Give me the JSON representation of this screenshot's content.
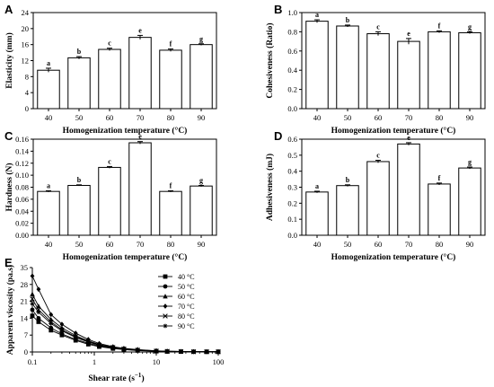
{
  "chart_data": [
    {
      "id": "A",
      "type": "bar",
      "panel_label": "A",
      "categories": [
        "40",
        "50",
        "60",
        "70",
        "80",
        "90"
      ],
      "values": [
        9.6,
        12.7,
        14.8,
        17.8,
        14.6,
        16.0
      ],
      "errors": [
        0.5,
        0.3,
        0.3,
        0.5,
        0.3,
        0.2
      ],
      "sig_letters": [
        "a",
        "b",
        "c",
        "e",
        "f",
        "g"
      ],
      "xlabel": "Homogenization temperature (°C)",
      "ylabel": "Elasticity (mm)",
      "ylim": [
        0,
        24
      ],
      "yticks": [
        "0",
        "4",
        "8",
        "12",
        "16",
        "20",
        "24"
      ],
      "ytick_values": [
        0,
        4,
        8,
        12,
        16,
        20,
        24
      ]
    },
    {
      "id": "B",
      "type": "bar",
      "panel_label": "B",
      "categories": [
        "40",
        "50",
        "60",
        "70",
        "80",
        "90"
      ],
      "values": [
        0.91,
        0.86,
        0.78,
        0.7,
        0.8,
        0.79
      ],
      "errors": [
        0.015,
        0.01,
        0.02,
        0.03,
        0.01,
        0.01
      ],
      "sig_letters": [
        "a",
        "b",
        "c",
        "e",
        "f",
        "g"
      ],
      "xlabel": "Homogenization temperature (°C)",
      "ylabel": "Cohesiveness (Ratio)",
      "ylim": [
        0,
        1.0
      ],
      "yticks": [
        "0.0",
        "0.2",
        "0.4",
        "0.6",
        "0.8",
        "1.0"
      ],
      "ytick_values": [
        0,
        0.2,
        0.4,
        0.6,
        0.8,
        1.0
      ]
    },
    {
      "id": "C",
      "type": "bar",
      "panel_label": "C",
      "categories": [
        "40",
        "50",
        "60",
        "70",
        "80",
        "90"
      ],
      "values": [
        0.073,
        0.083,
        0.113,
        0.154,
        0.073,
        0.082
      ],
      "errors": [
        0.001,
        0.001,
        0.0015,
        0.002,
        0.001,
        0.001
      ],
      "sig_letters": [
        "a",
        "b",
        "c",
        "e",
        "f",
        "g"
      ],
      "xlabel": "Homogenization temperature (°C)",
      "ylabel": "Hardness (N)",
      "ylim": [
        0,
        0.16
      ],
      "yticks": [
        "0.00",
        "0.02",
        "0.04",
        "0.06",
        "0.08",
        "0.10",
        "0.12",
        "0.14",
        "0.16"
      ],
      "ytick_values": [
        0,
        0.02,
        0.04,
        0.06,
        0.08,
        0.1,
        0.12,
        0.14,
        0.16
      ]
    },
    {
      "id": "D",
      "type": "bar",
      "panel_label": "D",
      "categories": [
        "40",
        "50",
        "60",
        "70",
        "80",
        "90"
      ],
      "values": [
        0.27,
        0.31,
        0.46,
        0.57,
        0.32,
        0.42
      ],
      "errors": [
        0.005,
        0.005,
        0.008,
        0.008,
        0.006,
        0.006
      ],
      "sig_letters": [
        "a",
        "b",
        "c",
        "e",
        "f",
        "g"
      ],
      "xlabel": "Homogenization temperature (°C)",
      "ylabel": "Adhesiveness (mJ)",
      "ylim": [
        0,
        0.6
      ],
      "yticks": [
        "0.0",
        "0.1",
        "0.2",
        "0.3",
        "0.4",
        "0.5",
        "0.6"
      ],
      "ytick_values": [
        0,
        0.1,
        0.2,
        0.3,
        0.4,
        0.5,
        0.6
      ]
    },
    {
      "id": "E",
      "type": "line",
      "panel_label": "E",
      "xscale": "log",
      "xlabel": "Shear rate (s",
      "xlabel_sup": "−1",
      "xlabel_close": ")",
      "ylabel": "Apparent viscosity (pa.s)",
      "xlim": [
        0.1,
        100
      ],
      "ylim": [
        0,
        35
      ],
      "xticks": [
        "0.1",
        "1",
        "10",
        "100"
      ],
      "xtick_values": [
        0.1,
        1,
        10,
        100
      ],
      "yticks": [
        "0",
        "7",
        "14",
        "21",
        "28",
        "35"
      ],
      "ytick_values": [
        0,
        7,
        14,
        21,
        28,
        35
      ],
      "legend_position": "top-right",
      "x": [
        0.1,
        0.126,
        0.2,
        0.3,
        0.5,
        0.8,
        1.2,
        2,
        3,
        5,
        10,
        15,
        25,
        40,
        65,
        100
      ],
      "series": [
        {
          "name": "40 °C",
          "marker": "square",
          "values": [
            15,
            12.5,
            9.0,
            7.0,
            4.8,
            3.2,
            2.2,
            1.4,
            1.0,
            0.6,
            0.3,
            0.2,
            0.15,
            0.1,
            0.1,
            0.1
          ]
        },
        {
          "name": "50 °C",
          "marker": "circle",
          "values": [
            17.5,
            14.0,
            10.0,
            7.5,
            5.2,
            3.6,
            2.5,
            1.6,
            1.1,
            0.7,
            0.35,
            0.25,
            0.15,
            0.1,
            0.1,
            0.1
          ]
        },
        {
          "name": "60 °C",
          "marker": "triangle",
          "values": [
            24.0,
            19.0,
            13.5,
            10.0,
            6.8,
            4.6,
            3.1,
            2.0,
            1.4,
            0.9,
            0.45,
            0.3,
            0.2,
            0.15,
            0.1,
            0.1
          ]
        },
        {
          "name": "70 °C",
          "marker": "diamond",
          "values": [
            31.5,
            26.0,
            15.5,
            11.5,
            7.8,
            5.2,
            3.5,
            2.2,
            1.5,
            1.0,
            0.5,
            0.3,
            0.2,
            0.15,
            0.1,
            0.1
          ]
        },
        {
          "name": "80 °C",
          "marker": "cross",
          "values": [
            22.0,
            17.5,
            12.5,
            9.2,
            6.3,
            4.3,
            2.9,
            1.9,
            1.3,
            0.8,
            0.4,
            0.3,
            0.2,
            0.1,
            0.1,
            0.1
          ]
        },
        {
          "name": "90 °C",
          "marker": "star",
          "values": [
            20.0,
            16.5,
            11.8,
            8.8,
            6.0,
            4.1,
            2.8,
            1.8,
            1.2,
            0.8,
            0.4,
            0.25,
            0.15,
            0.1,
            0.1,
            0.1
          ]
        }
      ]
    }
  ]
}
